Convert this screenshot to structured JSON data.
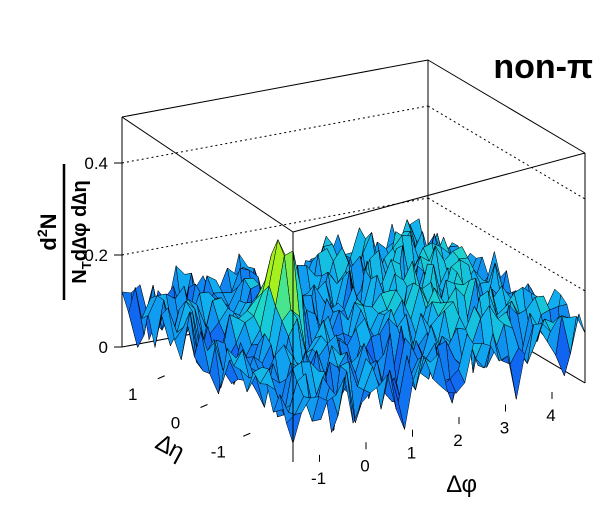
{
  "chart_data": {
    "type": "surface3d",
    "title": "non-π",
    "zlabel": {
      "numerator": "d²N",
      "denominator": "N_Td∆φ d∆η",
      "num_main": "d",
      "num_sup": "2",
      "num_tail": "N",
      "den_main": "N",
      "den_sub": "T",
      "den_tail": "d∆φ d∆η"
    },
    "xlabel": "∆φ",
    "ylabel": "∆η",
    "x_range": [
      -1.57,
      4.71
    ],
    "y_range": [
      -2,
      2
    ],
    "z_range": [
      0,
      0.5
    ],
    "x_ticks": [
      "-1",
      "0",
      "1",
      "2",
      "3",
      "4"
    ],
    "x_tick_values": [
      -1,
      0,
      1,
      2,
      3,
      4
    ],
    "y_ticks": [
      "-1",
      "0",
      "1"
    ],
    "y_tick_values": [
      -1,
      0,
      1
    ],
    "z_ticks": [
      "0",
      "0.2",
      "0.4"
    ],
    "z_tick_values": [
      0,
      0.2,
      0.4
    ],
    "grid": true,
    "near_side_peak": {
      "dphi": 0,
      "deta": 0,
      "height": 0.31
    },
    "away_side_ridge": {
      "dphi": 3.14,
      "height": 0.15
    },
    "baseline": 0.1,
    "colormap": [
      "#2a10d0",
      "#1060f0",
      "#10b0f0",
      "#20e0c0",
      "#a0f020",
      "#f0f000"
    ]
  }
}
